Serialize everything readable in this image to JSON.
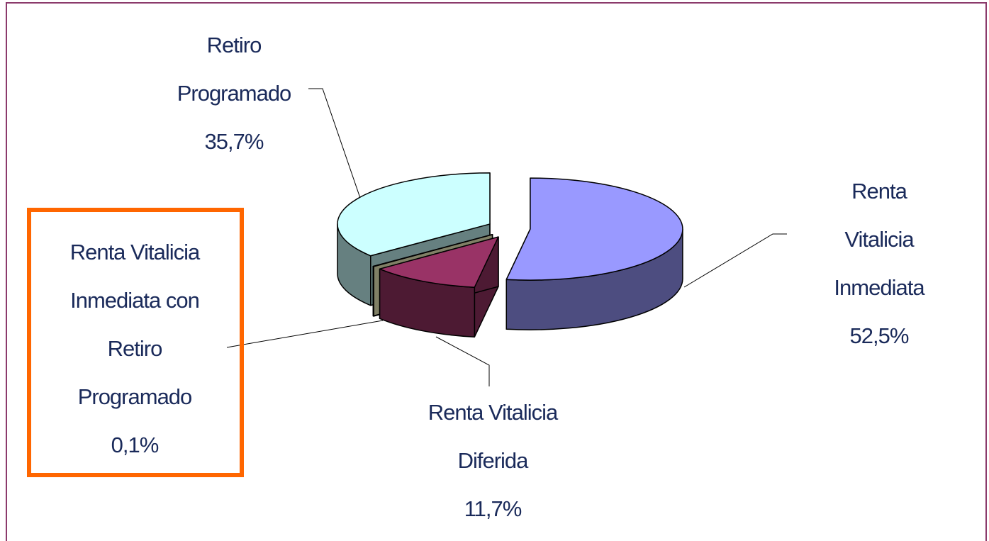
{
  "chart_data": {
    "type": "pie",
    "categories": [
      "Renta Vitalicia\nInmediata",
      "Renta Vitalicia\nDiferida",
      "Renta Vitalicia\nInmediata con\nRetiro\nProgramado",
      "Retiro\nProgramado"
    ],
    "values": [
      52.5,
      11.7,
      0.1,
      35.7
    ],
    "value_labels": [
      "52,5%",
      "11,7%",
      "0,1%",
      "35,7%"
    ],
    "colors": [
      "#9999ff",
      "#993366",
      "#ffffcc",
      "#ccffff"
    ]
  }
}
